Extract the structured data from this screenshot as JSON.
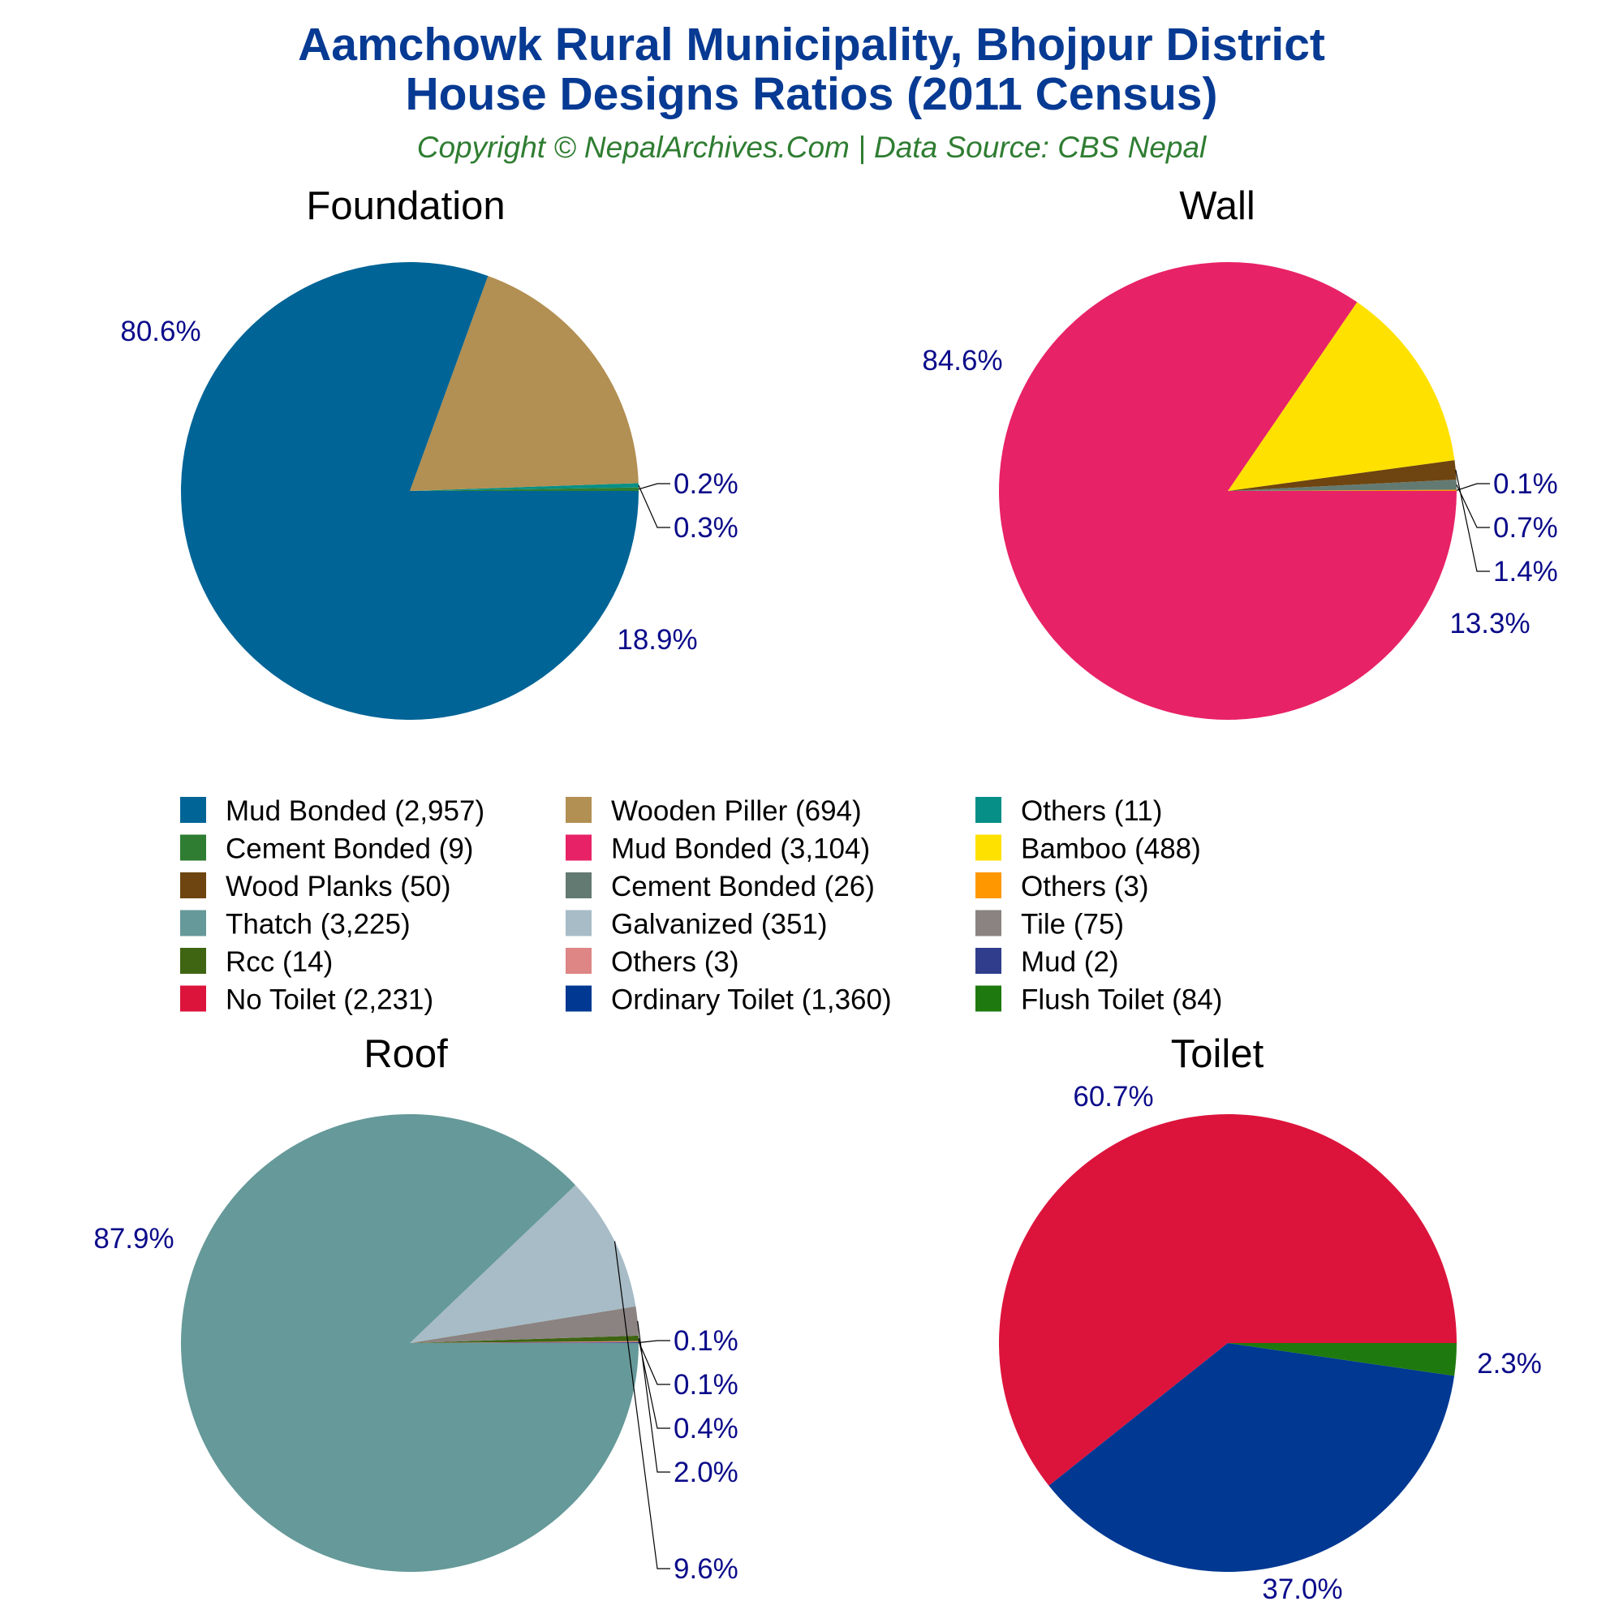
{
  "header": {
    "title_line1": "Aamchowk Rural Municipality, Bhojpur District",
    "title_line2": "House Designs Ratios (2011 Census)",
    "subtitle": "Copyright © NepalArchives.Com | Data Source: CBS Nepal"
  },
  "legend": {
    "placement": "center",
    "entries": [
      {
        "label": "Mud Bonded (2,957)",
        "color": "#006496"
      },
      {
        "label": "Wooden Piller (694)",
        "color": "#b28f52"
      },
      {
        "label": "Others (11)",
        "color": "#058f86"
      },
      {
        "label": "Cement Bonded (9)",
        "color": "#2e7d32"
      },
      {
        "label": "Mud Bonded (3,104)",
        "color": "#e82266"
      },
      {
        "label": "Bamboo (488)",
        "color": "#ffe100"
      },
      {
        "label": "Wood Planks (50)",
        "color": "#6e4510"
      },
      {
        "label": "Cement Bonded (26)",
        "color": "#637a72"
      },
      {
        "label": "Others (3)",
        "color": "#ff9800"
      },
      {
        "label": "Thatch (3,225)",
        "color": "#669999"
      },
      {
        "label": "Galvanized (351)",
        "color": "#a7bcc6"
      },
      {
        "label": "Tile (75)",
        "color": "#8a8381"
      },
      {
        "label": "Rcc (14)",
        "color": "#3f6512"
      },
      {
        "label": "Others (3)",
        "color": "#de8585"
      },
      {
        "label": "Mud (2)",
        "color": "#2f3d8c"
      },
      {
        "label": "No Toilet (2,231)",
        "color": "#dc143c"
      },
      {
        "label": "Ordinary Toilet (1,360)",
        "color": "#003892"
      },
      {
        "label": "Flush Toilet (84)",
        "color": "#1e7a0e"
      }
    ]
  },
  "chart_data": [
    {
      "type": "pie",
      "title": "Foundation",
      "slices": [
        {
          "label": "Mud Bonded",
          "value": 2957,
          "pct_label": "80.6%",
          "color": "#006496"
        },
        {
          "label": "Wooden Piller",
          "value": 694,
          "pct_label": "18.9%",
          "color": "#b28f52"
        },
        {
          "label": "Others",
          "value": 11,
          "pct_label": "0.3%",
          "color": "#058f86"
        },
        {
          "label": "Cement Bonded",
          "value": 9,
          "pct_label": "0.2%",
          "color": "#2e7d32"
        }
      ]
    },
    {
      "type": "pie",
      "title": "Wall",
      "slices": [
        {
          "label": "Mud Bonded",
          "value": 3104,
          "pct_label": "84.6%",
          "color": "#e82266"
        },
        {
          "label": "Bamboo",
          "value": 488,
          "pct_label": "13.3%",
          "color": "#ffe100"
        },
        {
          "label": "Wood Planks",
          "value": 50,
          "pct_label": "1.4%",
          "color": "#6e4510"
        },
        {
          "label": "Cement Bonded",
          "value": 26,
          "pct_label": "0.7%",
          "color": "#637a72"
        },
        {
          "label": "Others",
          "value": 3,
          "pct_label": "0.1%",
          "color": "#ff9800"
        }
      ]
    },
    {
      "type": "pie",
      "title": "Roof",
      "slices": [
        {
          "label": "Thatch",
          "value": 3225,
          "pct_label": "87.9%",
          "color": "#669999"
        },
        {
          "label": "Galvanized",
          "value": 351,
          "pct_label": "9.6%",
          "color": "#a7bcc6"
        },
        {
          "label": "Tile",
          "value": 75,
          "pct_label": "2.0%",
          "color": "#8a8381"
        },
        {
          "label": "Rcc",
          "value": 14,
          "pct_label": "0.4%",
          "color": "#3f6512"
        },
        {
          "label": "Others",
          "value": 3,
          "pct_label": "0.1%",
          "color": "#de8585"
        },
        {
          "label": "Mud",
          "value": 2,
          "pct_label": "0.1%",
          "color": "#2f3d8c"
        }
      ]
    },
    {
      "type": "pie",
      "title": "Toilet",
      "slices": [
        {
          "label": "No Toilet",
          "value": 2231,
          "pct_label": "60.7%",
          "color": "#dc143c"
        },
        {
          "label": "Ordinary Toilet",
          "value": 1360,
          "pct_label": "37.0%",
          "color": "#003892"
        },
        {
          "label": "Flush Toilet",
          "value": 84,
          "pct_label": "2.3%",
          "color": "#1e7a0e"
        }
      ]
    }
  ]
}
